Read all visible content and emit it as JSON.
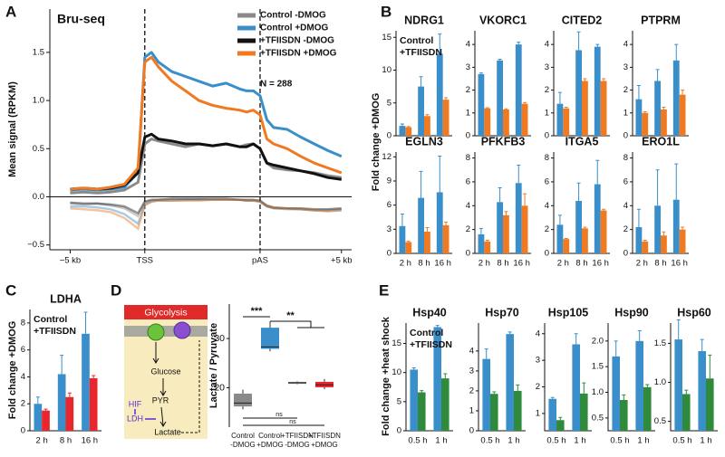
{
  "chart_data": [
    {
      "type": "line",
      "panel_label": "A",
      "title": "Bru-seq",
      "ylabel": "Mean signal (RPKM)",
      "annotation": "N = 288",
      "x": [
        0,
        2,
        4,
        6,
        8,
        10,
        11,
        12,
        13,
        15,
        17,
        19,
        21,
        23,
        25,
        26,
        27,
        28,
        29,
        30,
        32,
        34,
        36,
        38,
        40
      ],
      "xlim": [
        -3,
        41.5
      ],
      "xticks": [
        {
          "value": 0,
          "label": "−5 kb"
        },
        {
          "value": 11,
          "label": "TSS"
        },
        {
          "value": 28,
          "label": "pAS"
        },
        {
          "value": 40,
          "label": "+5 kb"
        }
      ],
      "vlines": [
        11,
        28
      ],
      "hlines": [
        0
      ],
      "ylim": [
        -0.55,
        1.95
      ],
      "yticks": [
        {
          "value": -0.5,
          "label": "−0.5"
        },
        {
          "value": 0,
          "label": "0.0"
        },
        0.5,
        {
          "value": 1,
          "label": "1.0"
        },
        1.5
      ],
      "series": [
        {
          "name": "Control -DMOG",
          "color": "#8a8a8a",
          "values": [
            0.04,
            0.05,
            0.04,
            0.05,
            0.07,
            0.15,
            0.55,
            0.6,
            0.58,
            0.55,
            0.52,
            0.55,
            0.53,
            0.55,
            0.52,
            0.54,
            0.55,
            0.5,
            0.35,
            0.3,
            0.28,
            0.27,
            0.25,
            0.22,
            0.2
          ],
          "antisense_values": [
            -0.07,
            -0.08,
            -0.07,
            -0.09,
            -0.12,
            -0.2,
            -0.06,
            -0.04,
            -0.03,
            -0.03,
            -0.03,
            -0.03,
            -0.03,
            -0.03,
            -0.03,
            -0.04,
            -0.04,
            -0.05,
            -0.1,
            -0.12,
            -0.13,
            -0.13,
            -0.14,
            -0.15,
            -0.14
          ]
        },
        {
          "name": "Control +DMOG",
          "color": "#3a8fca",
          "values": [
            0.07,
            0.08,
            0.07,
            0.08,
            0.1,
            0.25,
            1.45,
            1.5,
            1.4,
            1.3,
            1.25,
            1.2,
            1.15,
            1.18,
            1.12,
            1.1,
            1.1,
            1.05,
            0.8,
            0.72,
            0.7,
            0.62,
            0.55,
            0.48,
            0.42
          ],
          "antisense_values": [
            -0.1,
            -0.1,
            -0.11,
            -0.13,
            -0.18,
            -0.28,
            -0.08,
            -0.05,
            -0.04,
            -0.04,
            -0.03,
            -0.03,
            -0.03,
            -0.03,
            -0.03,
            -0.04,
            -0.04,
            -0.05,
            -0.1,
            -0.12,
            -0.12,
            -0.13,
            -0.14,
            -0.14,
            -0.13
          ]
        },
        {
          "name": "+TFIISDN -DMOG",
          "color": "#111111",
          "values": [
            0.08,
            0.09,
            0.08,
            0.09,
            0.12,
            0.25,
            0.62,
            0.65,
            0.6,
            0.58,
            0.55,
            0.55,
            0.53,
            0.55,
            0.52,
            0.52,
            0.55,
            0.5,
            0.35,
            0.33,
            0.3,
            0.27,
            0.24,
            0.2,
            0.18
          ],
          "antisense_values": [
            -0.06,
            -0.07,
            -0.07,
            -0.08,
            -0.1,
            -0.17,
            -0.05,
            -0.03,
            -0.03,
            -0.02,
            -0.02,
            -0.02,
            -0.02,
            -0.02,
            -0.03,
            -0.03,
            -0.03,
            -0.04,
            -0.09,
            -0.11,
            -0.12,
            -0.12,
            -0.13,
            -0.13,
            -0.12
          ]
        },
        {
          "name": "+TFIISDN +DMOG",
          "color": "#ef7a22",
          "values": [
            0.08,
            0.09,
            0.08,
            0.1,
            0.13,
            0.3,
            1.4,
            1.45,
            1.35,
            1.2,
            1.1,
            1.0,
            0.95,
            0.92,
            0.9,
            0.88,
            0.9,
            0.85,
            0.6,
            0.55,
            0.5,
            0.42,
            0.35,
            0.3,
            0.25
          ],
          "antisense_values": [
            -0.12,
            -0.13,
            -0.14,
            -0.16,
            -0.22,
            -0.33,
            -0.09,
            -0.05,
            -0.04,
            -0.04,
            -0.04,
            -0.04,
            -0.03,
            -0.03,
            -0.03,
            -0.04,
            -0.04,
            -0.05,
            -0.1,
            -0.11,
            -0.12,
            -0.13,
            -0.14,
            -0.15,
            -0.14
          ]
        }
      ]
    },
    {
      "type": "bar",
      "panel_label": "B",
      "ylabel": "Fold change +DMOG",
      "categories": [
        "2 h",
        "8 h",
        "16 h"
      ],
      "series": [
        {
          "name": "Control",
          "color": "#3a8fca"
        },
        {
          "name": "+TFIISDN",
          "color": "#ef7a22"
        }
      ],
      "panels": [
        {
          "title": "NDRG1",
          "ylim": [
            0,
            16
          ],
          "yticks": [
            0,
            5,
            10,
            15
          ],
          "values": [
            [
              1.5,
              7.5,
              12.5
            ],
            [
              1.3,
              3,
              5.5
            ]
          ],
          "errors": [
            [
              0.3,
              1.5,
              3
            ],
            [
              0.1,
              0.2,
              0.3
            ]
          ]
        },
        {
          "title": "VKORC1",
          "ylim": [
            0,
            4.6
          ],
          "yticks": [
            0,
            1,
            2,
            3,
            4
          ],
          "values": [
            [
              2.7,
              3.3,
              4.0
            ],
            [
              1.2,
              1.15,
              1.4
            ]
          ],
          "errors": [
            [
              0.05,
              0.05,
              0.1
            ],
            [
              0.03,
              0.03,
              0.05
            ]
          ]
        },
        {
          "title": "CITED2",
          "ylim": [
            0,
            4.6
          ],
          "yticks": [
            0,
            1,
            2,
            3,
            4
          ],
          "values": [
            [
              1.4,
              3.75,
              3.9
            ],
            [
              1.2,
              2.4,
              2.4
            ]
          ],
          "errors": [
            [
              0.5,
              0.8,
              0.1
            ],
            [
              0.05,
              0.1,
              0.1
            ]
          ]
        },
        {
          "title": "PTPRM",
          "ylim": [
            0,
            4.6
          ],
          "yticks": [
            0,
            1,
            2,
            3,
            4
          ],
          "values": [
            [
              1.6,
              2.4,
              3.3
            ],
            [
              1.0,
              1.15,
              1.8
            ]
          ],
          "errors": [
            [
              0.6,
              0.5,
              0.7
            ],
            [
              0.05,
              0.1,
              0.2
            ]
          ]
        },
        {
          "title": "EGLN3",
          "ylim": [
            0,
            12.6
          ],
          "yticks": [
            0,
            3,
            6,
            9,
            12
          ],
          "values": [
            [
              3.4,
              6.9,
              7.6
            ],
            [
              1.4,
              2.7,
              3.5
            ]
          ],
          "errors": [
            [
              1.5,
              3.3,
              4.5
            ],
            [
              0.1,
              0.5,
              0.4
            ]
          ]
        },
        {
          "title": "PFKFB3",
          "ylim": [
            0,
            8.5
          ],
          "yticks": [
            0,
            2,
            4,
            6,
            8
          ],
          "values": [
            [
              1.6,
              4.3,
              5.9
            ],
            [
              1.0,
              3.2,
              4.0
            ]
          ],
          "errors": [
            [
              0.5,
              1.2,
              1.5
            ],
            [
              0.1,
              0.3,
              1.0
            ]
          ]
        },
        {
          "title": "ITGA5",
          "ylim": [
            0,
            8.5
          ],
          "yticks": [
            0,
            2,
            4,
            6,
            8
          ],
          "values": [
            [
              2.4,
              4.4,
              5.8
            ],
            [
              1.2,
              2.1,
              3.6
            ]
          ],
          "errors": [
            [
              0.8,
              1.5,
              2
            ],
            [
              0.05,
              0.1,
              0.1
            ]
          ]
        },
        {
          "title": "ERO1L",
          "ylim": [
            0,
            8.5
          ],
          "yticks": [
            0,
            2,
            4,
            6,
            8
          ],
          "values": [
            [
              2.2,
              4.0,
              4.5
            ],
            [
              1.0,
              1.5,
              2.0
            ]
          ],
          "errors": [
            [
              1.5,
              3,
              3
            ],
            [
              0.1,
              0.3,
              0.2
            ]
          ]
        }
      ]
    },
    {
      "type": "bar",
      "panel_label": "C",
      "ylabel": "Fold change +DMOG",
      "categories": [
        "2 h",
        "8 h",
        "16 h"
      ],
      "series": [
        {
          "name": "Control",
          "color": "#3a8fca"
        },
        {
          "name": "+TFIISDN",
          "color": "#e8262b"
        }
      ],
      "panels": [
        {
          "title": "LDHA",
          "ylim": [
            0,
            9
          ],
          "yticks": [
            0,
            2,
            4,
            6,
            8
          ],
          "values": [
            [
              2.0,
              4.2,
              7.2
            ],
            [
              1.5,
              2.5,
              3.9
            ]
          ],
          "errors": [
            [
              0.5,
              1.4,
              1.6
            ],
            [
              0.1,
              0.3,
              0.2
            ]
          ]
        }
      ]
    },
    {
      "type": "box",
      "panel_label": "D",
      "ylabel": "Lactate / Pyruvate",
      "diagram": {
        "title": "Glycolysis",
        "substrates": [
          "Glucose",
          "PYR",
          "Lactate"
        ],
        "regulators": [
          "HIF",
          "LDH"
        ]
      },
      "categories": [
        "Control -DMOG",
        "Control +DMOG",
        "+TFIISDN -DMOG",
        "+TFIISDN +DMOG"
      ],
      "ylim": [
        12,
        37
      ],
      "yticks": [
        20,
        30
      ],
      "boxes": [
        {
          "color": "#8a8a8a",
          "whislo": 15.6,
          "q1": 16.2,
          "med": 16.9,
          "q3": 18.8,
          "whishi": 19.6
        },
        {
          "color": "#3a8fca",
          "whislo": 27.4,
          "q1": 27.9,
          "med": 28.3,
          "q3": 32.2,
          "whishi": 33.5
        },
        {
          "color": "#8a8a8a",
          "whislo": 20.7,
          "q1": 20.8,
          "med": 21.0,
          "q3": 21.2,
          "whishi": 21.3
        },
        {
          "color": "#e8262b",
          "whislo": 19.7,
          "q1": 20.1,
          "med": 20.6,
          "q3": 21.2,
          "whishi": 21.8
        }
      ],
      "significance": [
        "***",
        "**",
        "ns",
        "ns"
      ]
    },
    {
      "type": "bar",
      "panel_label": "E",
      "ylabel": "Fold change +heat shock",
      "categories": [
        "0.5 h",
        "1 h"
      ],
      "series": [
        {
          "name": "Control",
          "color": "#3a8fca"
        },
        {
          "name": "+TFIISDN",
          "color": "#2f8a3c"
        }
      ],
      "panels": [
        {
          "title": "Hsp40",
          "ylim": [
            0,
            18.5
          ],
          "yticks": [
            0,
            5,
            10,
            15
          ],
          "values": [
            [
              10.5,
              17.8
            ],
            [
              6.6,
              9.0
            ]
          ],
          "errors": [
            [
              0.3,
              0.3
            ],
            [
              0.3,
              0.8
            ]
          ]
        },
        {
          "title": "Hsp70",
          "ylim": [
            0,
            5.4
          ],
          "yticks": [
            0,
            1,
            2,
            3,
            4
          ],
          "values": [
            [
              3.6,
              4.85
            ],
            [
              1.85,
              2.0
            ]
          ],
          "errors": [
            [
              0.5,
              0.1
            ],
            [
              0.1,
              0.3
            ]
          ]
        },
        {
          "title": "Hsp105",
          "ylim": [
            0.35,
            4.4
          ],
          "yticks": [
            1,
            2,
            3,
            4
          ],
          "values": [
            [
              1.55,
              3.6
            ],
            [
              0.75,
              1.75
            ]
          ],
          "errors": [
            [
              0.05,
              0.4
            ],
            [
              0.1,
              0.4
            ]
          ]
        },
        {
          "title": "Hsp90",
          "ylim": [
            0.25,
            2.35
          ],
          "yticks": [
            0.5,
            {
              "value": 1,
              "label": "1.0"
            },
            1.5,
            {
              "value": 2,
              "label": "2.0"
            }
          ],
          "values": [
            [
              1.7,
              2.0
            ],
            [
              0.85,
              1.1
            ]
          ],
          "errors": [
            [
              0.3,
              0.2
            ],
            [
              0.1,
              0.05
            ]
          ]
        },
        {
          "title": "Hsp60",
          "ylim": [
            0.38,
            1.76
          ],
          "yticks": [
            0.5,
            {
              "value": 1,
              "label": "1.0"
            },
            1.5
          ],
          "values": [
            [
              1.55,
              1.4
            ],
            [
              0.85,
              1.05
            ]
          ],
          "errors": [
            [
              0.25,
              0.15
            ],
            [
              0.05,
              0.3
            ]
          ]
        }
      ]
    }
  ]
}
